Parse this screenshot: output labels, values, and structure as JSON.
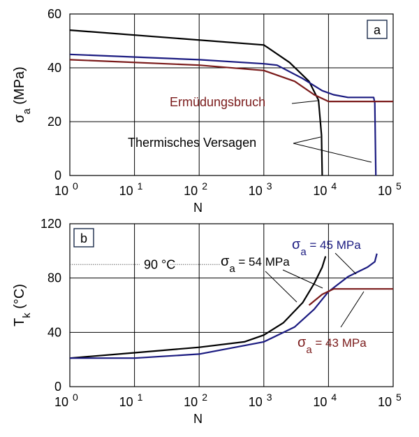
{
  "chart_data": [
    {
      "type": "line",
      "panel_label": "a",
      "xlabel": "N",
      "ylabel": "σa (MPa)",
      "x_scale": "log",
      "xlim": [
        1,
        100000
      ],
      "ylim": [
        0,
        60
      ],
      "yticks": [
        "0",
        "20",
        "40",
        "60"
      ],
      "xticks": [
        {
          "base": "10",
          "exp": "0"
        },
        {
          "base": "10",
          "exp": "1"
        },
        {
          "base": "10",
          "exp": "2"
        },
        {
          "base": "10",
          "exp": "3"
        },
        {
          "base": "10",
          "exp": "4"
        },
        {
          "base": "10",
          "exp": "5"
        }
      ],
      "grid": true,
      "series": [
        {
          "color": "#000000",
          "x": [
            1,
            1000,
            2500,
            5000,
            7000,
            7800,
            8000
          ],
          "y": [
            54,
            48.5,
            42,
            35,
            28,
            15,
            0
          ]
        },
        {
          "color": "#1a1a80",
          "x": [
            1,
            100,
            1000,
            1600,
            4000,
            8000,
            12000,
            20000,
            40000,
            50000,
            52000,
            54000
          ],
          "y": [
            45,
            43,
            41.5,
            41,
            36,
            31.5,
            30,
            29,
            29,
            29,
            27,
            0
          ]
        },
        {
          "color": "#7a1a1a",
          "x": [
            1,
            100,
            1000,
            3000,
            6000,
            10000,
            30000,
            100000
          ],
          "y": [
            43,
            41,
            39,
            35,
            30,
            27.5,
            27.5,
            27.5
          ]
        }
      ],
      "annotations": [
        {
          "text": "Ermüdungsbruch",
          "color": "#7a1a1a"
        },
        {
          "text": "Thermisches Versagen",
          "color": "#000000"
        }
      ]
    },
    {
      "type": "line",
      "panel_label": "b",
      "xlabel": "N",
      "ylabel": "Tk (°C)",
      "x_scale": "log",
      "xlim": [
        1,
        100000
      ],
      "ylim": [
        0,
        120
      ],
      "yticks": [
        "0",
        "40",
        "80",
        "120"
      ],
      "xticks": [
        {
          "base": "10",
          "exp": "0"
        },
        {
          "base": "10",
          "exp": "1"
        },
        {
          "base": "10",
          "exp": "2"
        },
        {
          "base": "10",
          "exp": "3"
        },
        {
          "base": "10",
          "exp": "4"
        },
        {
          "base": "10",
          "exp": "5"
        }
      ],
      "grid": true,
      "reference_line": {
        "value": 90,
        "label": "90 °C"
      },
      "series": [
        {
          "name": "σa = 54 MPa",
          "color": "#000000",
          "x": [
            1,
            10,
            100,
            500,
            1000,
            2000,
            4000,
            6000,
            8000,
            9000
          ],
          "y": [
            21,
            25,
            29,
            33,
            38,
            47,
            62,
            76,
            88,
            96
          ]
        },
        {
          "name": "σa = 45 MPa",
          "color": "#1a1a80",
          "x": [
            1,
            10,
            100,
            1000,
            3000,
            6000,
            10000,
            20000,
            40000,
            52000,
            56000
          ],
          "y": [
            21,
            21,
            24,
            33,
            44,
            57,
            70,
            81,
            88,
            92,
            98
          ]
        },
        {
          "name": "σa = 43 MPa",
          "color": "#7a1a1a",
          "x": [
            5000,
            8000,
            12000,
            30000,
            100000
          ],
          "y": [
            60,
            68,
            72,
            72,
            72
          ]
        }
      ]
    }
  ]
}
